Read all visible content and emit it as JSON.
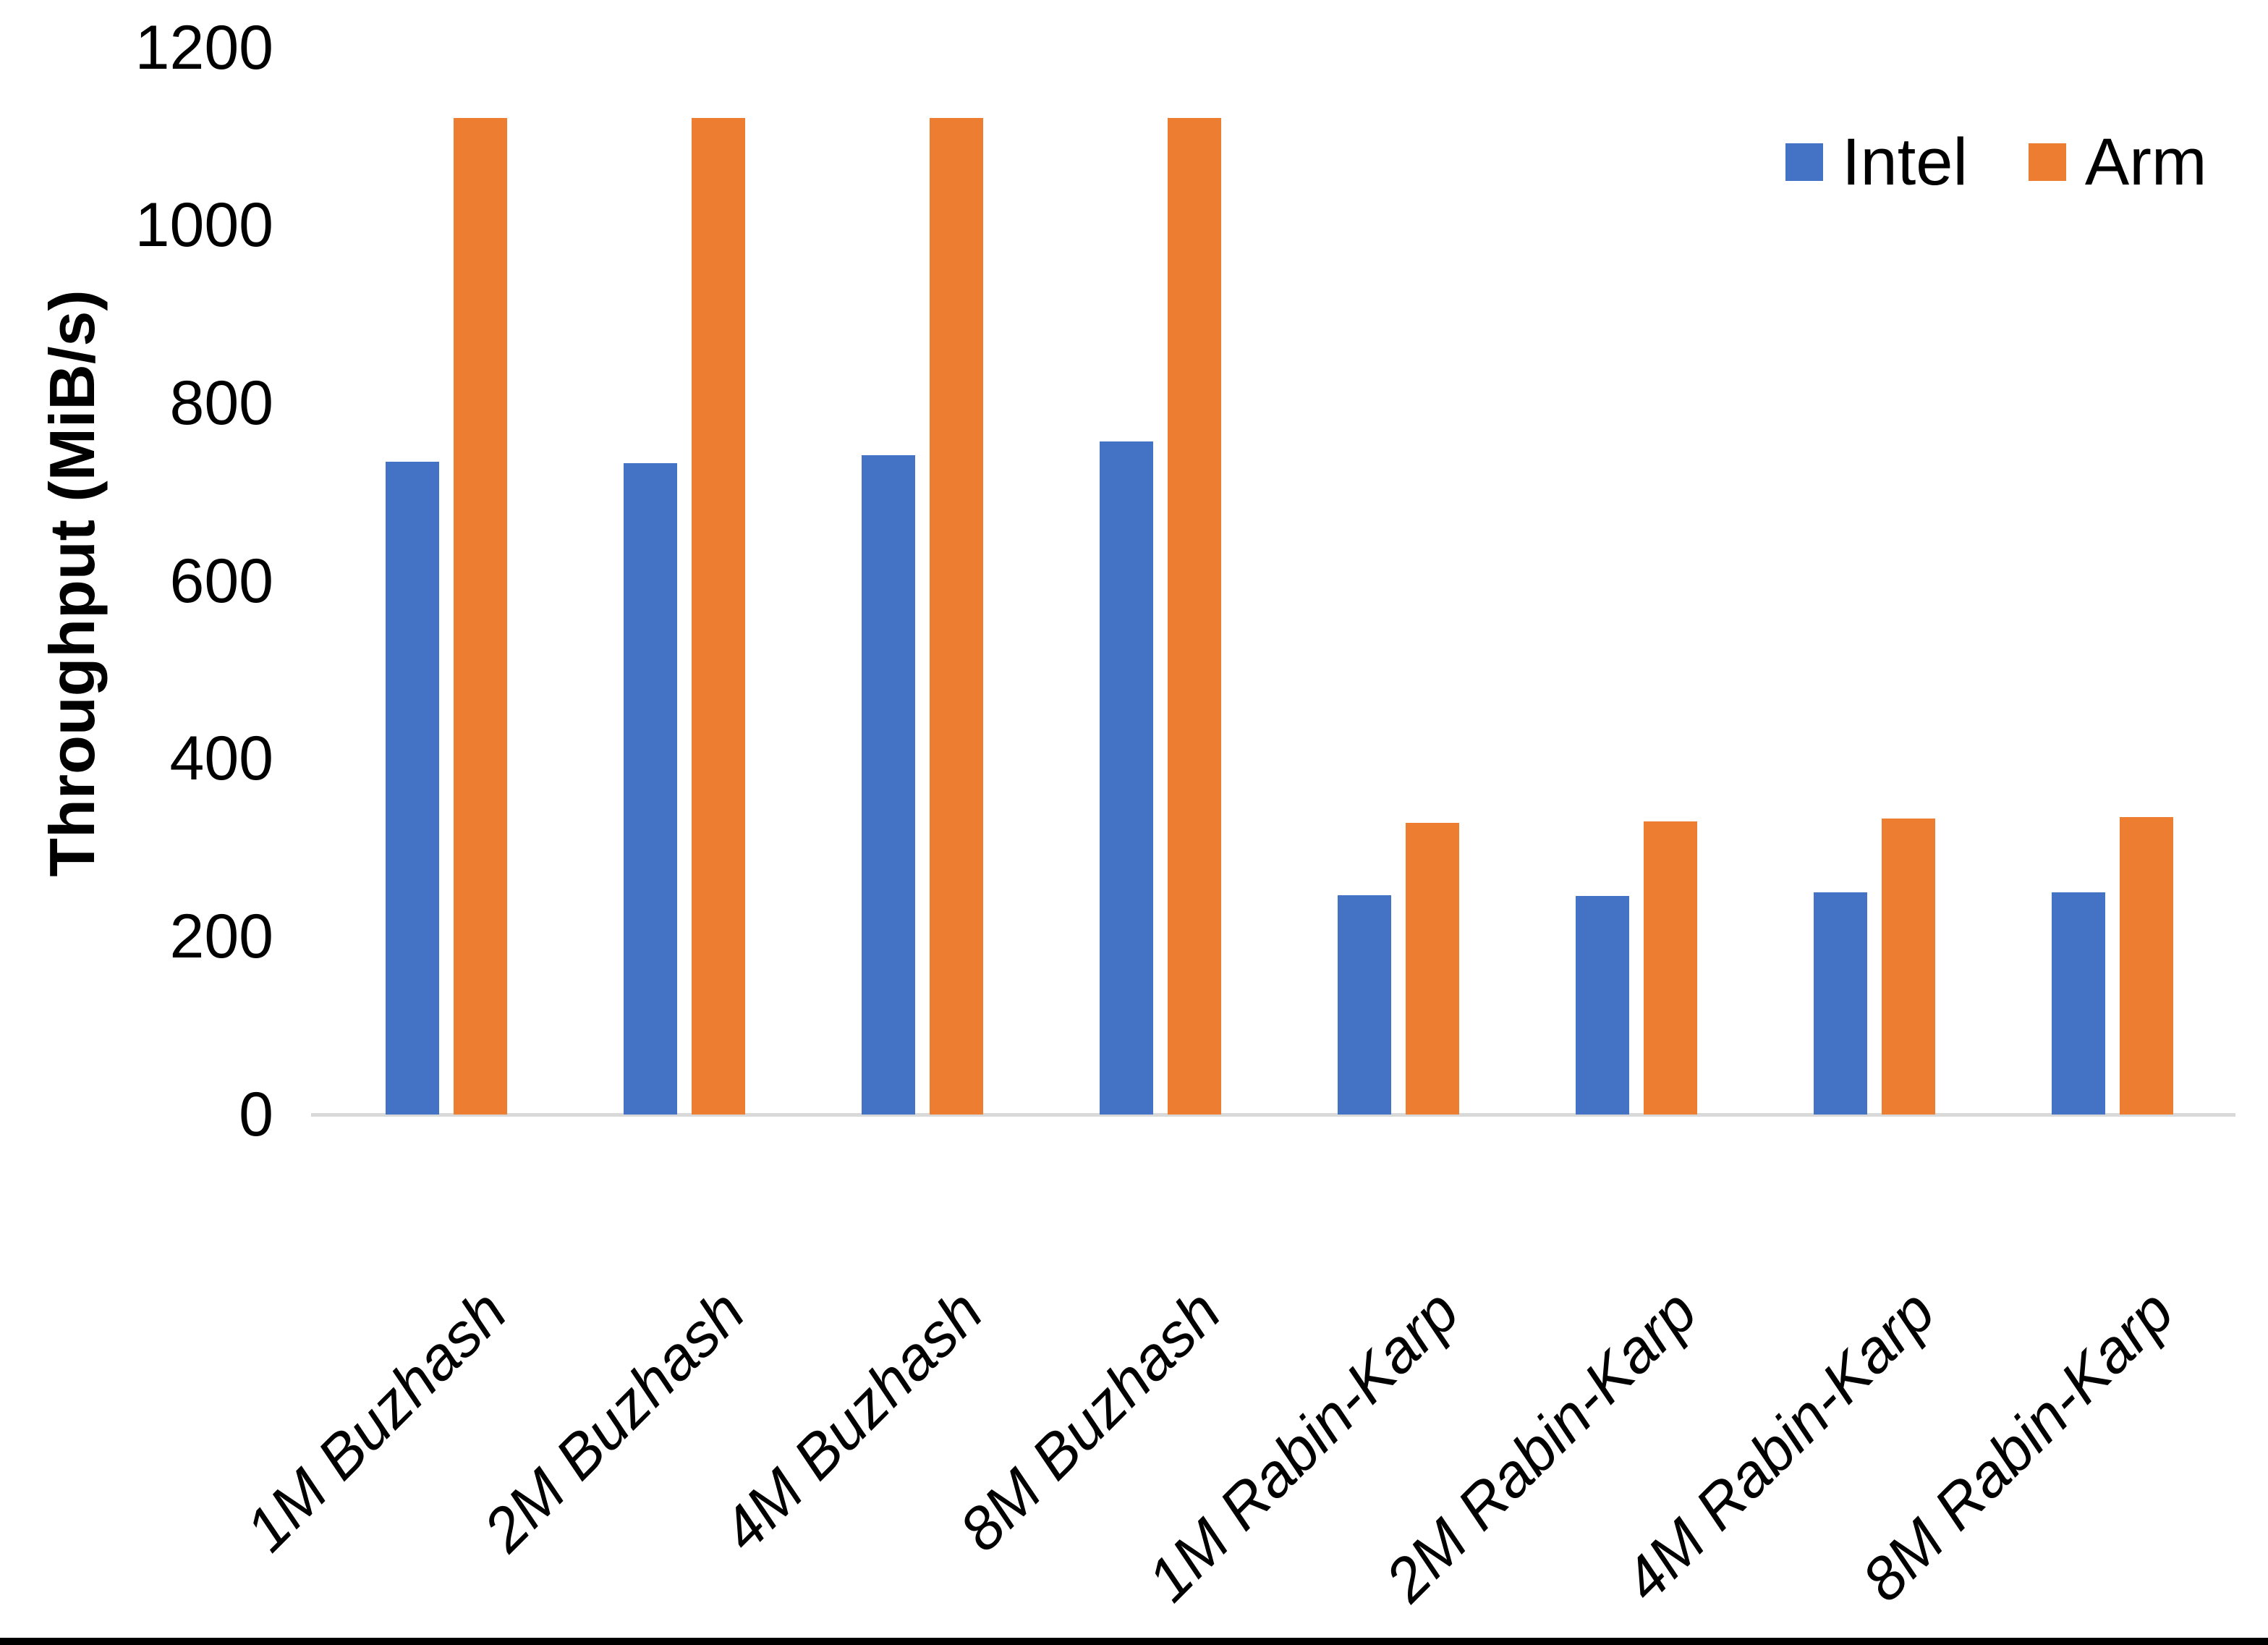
{
  "chart_data": {
    "type": "bar",
    "title": "",
    "xlabel": "",
    "ylabel": "Throughput (MiB/s)",
    "categories": [
      "1M Buzhash",
      "2M Buzhash",
      "4M Buzhash",
      "8M Buzhash",
      "1M Rabin-Karp",
      "2M Rabin-Karp",
      "4M Rabin-Karp",
      "8M Rabin-Karp"
    ],
    "series": [
      {
        "name": "Intel",
        "color": "#4472C4",
        "values": [
          734,
          733,
          742,
          757,
          247,
          246,
          250,
          250
        ]
      },
      {
        "name": "Arm",
        "color": "#ED7D31",
        "values": [
          1121,
          1121,
          1121,
          1121,
          328,
          330,
          333,
          335
        ]
      }
    ],
    "ylim": [
      0,
      1200
    ],
    "yticks": [
      0,
      200,
      400,
      600,
      800,
      1000,
      1200
    ],
    "grid": false,
    "legend_position": "top-right",
    "axis_line_color": "#D9D9D9"
  }
}
